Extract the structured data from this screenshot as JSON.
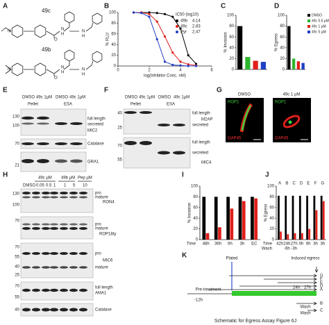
{
  "panel_labels": [
    "A",
    "B",
    "C",
    "D",
    "E",
    "F",
    "G",
    "H",
    "I",
    "J",
    "K"
  ],
  "panel_a": {
    "compounds": [
      "49c",
      "49b"
    ],
    "atoms": [
      "N",
      "O",
      "N",
      "H"
    ]
  },
  "panel_e": {
    "treatments": [
      "DMSO",
      "49c 1µM",
      "DMSO",
      "49c 1µM"
    ],
    "fractions": [
      "Pellet",
      "ESA"
    ],
    "bands": [
      "full length",
      "secreted"
    ],
    "proteins": [
      "MIC2",
      "Catalase",
      "GRA1"
    ],
    "mw": [
      130,
      100,
      70,
      21
    ]
  },
  "panel_f": {
    "treatments": [
      "DMSO",
      "49c 1µM",
      "DMSO",
      "49c 1µM"
    ],
    "fractions": [
      "Pellet",
      "ESA"
    ],
    "bands": [
      "full length",
      "secreted"
    ],
    "proteins": [
      "M2AP",
      "MIC4"
    ],
    "mw": [
      40,
      25,
      70,
      55
    ]
  },
  "panel_g": {
    "conditions": [
      "DMSO",
      "49c 1 µM"
    ],
    "stains": [
      "ROP1",
      "GAP45"
    ]
  },
  "panel_h": {
    "groups": [
      "49c µM",
      "49b µM",
      "Pep µM"
    ],
    "lanes": [
      "DMSO",
      0.05,
      0.5,
      1,
      1,
      5,
      10
    ],
    "proteins": [
      "RON4",
      "ROP18ty",
      "MIC6",
      "AMA1",
      "Catalase"
    ],
    "forms": [
      "pro",
      "mature"
    ],
    "full_length": "full length",
    "mw": [
      130,
      100,
      70,
      70,
      55,
      40,
      25,
      70,
      55,
      40
    ]
  },
  "panel_k": {
    "plated": "Plated",
    "induced": "Induced egress",
    "lines": [
      "G",
      "F",
      "E",
      "D",
      "A",
      "B",
      "C"
    ],
    "pretreatment": "Pre-treatment",
    "start": "-12h",
    "times": [
      "24h",
      "27h"
    ],
    "wash": "Wash",
    "caption": "Schematic for Egress Assay Figure 6J"
  },
  "chart_data": [
    {
      "type": "line",
      "ylabel": "% RLU",
      "xlabel": "log(Inhibitor Conc. nM)",
      "legend_title": "IC50 (log10)",
      "x": [
        1,
        1.5,
        2,
        2.5,
        3,
        3.5,
        4,
        4.5,
        5
      ],
      "xlim": [
        0,
        6
      ],
      "xticks": [
        0,
        2,
        4,
        6
      ],
      "ylim": [
        0,
        100
      ],
      "yticks": [
        0,
        20,
        40,
        60,
        80,
        100
      ],
      "series": [
        {
          "name": "49b",
          "ic50": 4.14,
          "color": "#000000",
          "values": [
            100,
            100,
            100,
            99,
            97,
            92,
            70,
            20,
            4
          ]
        },
        {
          "name": "49c",
          "ic50": 2.83,
          "color": "#e0201b",
          "values": [
            100,
            100,
            97,
            83,
            55,
            25,
            8,
            3,
            1
          ]
        },
        {
          "name": "Pyr",
          "ic50": 2.47,
          "color": "#1f3fc4",
          "values": [
            100,
            99,
            92,
            50,
            8,
            2,
            1,
            0,
            0
          ]
        }
      ]
    },
    {
      "type": "bar",
      "ylabel": "% Invasion",
      "categories": [
        null,
        null,
        null,
        null
      ],
      "values": [
        80,
        23,
        16,
        14
      ],
      "colors": [
        "#000000",
        "#2db52d",
        "#e0201b",
        "#1f3fc4"
      ],
      "ylim": [
        0,
        100
      ],
      "yticks": [
        0,
        20,
        40,
        60,
        80,
        100
      ]
    },
    {
      "type": "bar",
      "ylabel": "% Egress",
      "legend": true,
      "categories": [
        "DMSO",
        "49c 0.5 µM",
        "49c 1 µM",
        "49c 5 µM"
      ],
      "values": [
        80,
        20,
        15,
        12
      ],
      "colors": [
        "#000000",
        "#2db52d",
        "#e0201b",
        "#1f3fc4"
      ],
      "ylim": [
        0,
        100
      ],
      "yticks": [
        0,
        20,
        40,
        60,
        80,
        100
      ]
    },
    {
      "type": "group",
      "ylabel": "% Invasion",
      "xlabel": "Time",
      "categories": [
        "48h",
        "36h",
        "6h",
        "3h",
        "EC"
      ],
      "ylim": [
        0,
        100
      ],
      "yticks": [
        0,
        20,
        40,
        60,
        80,
        100
      ],
      "series": [
        {
          "color": "#000000",
          "values": [
            80,
            80,
            80,
            80,
            80
          ]
        },
        {
          "color": "#e0201b",
          "values": [
            12,
            23,
            58,
            72,
            77
          ]
        }
      ]
    },
    {
      "type": "group",
      "ylabel": "% Egress",
      "xlabel": "Time",
      "wash_label": "Wash",
      "categories": [
        "42h",
        "24h",
        "27h",
        "0h",
        "6h",
        "3h",
        "3h"
      ],
      "wash": [
        null,
        "-6h",
        "-3h",
        null,
        null,
        null,
        null
      ],
      "letters": [
        "A",
        "B",
        "C",
        "D",
        "E",
        "F",
        "G"
      ],
      "ylim": [
        0,
        100
      ],
      "yticks": [
        0,
        20,
        40,
        60,
        80,
        100
      ],
      "series": [
        {
          "color": "#000000",
          "values": [
            82,
            82,
            82,
            82,
            82,
            82,
            82
          ]
        },
        {
          "color": "#e0201b",
          "values": [
            15,
            10,
            12,
            12,
            20,
            55,
            72
          ]
        }
      ]
    }
  ]
}
